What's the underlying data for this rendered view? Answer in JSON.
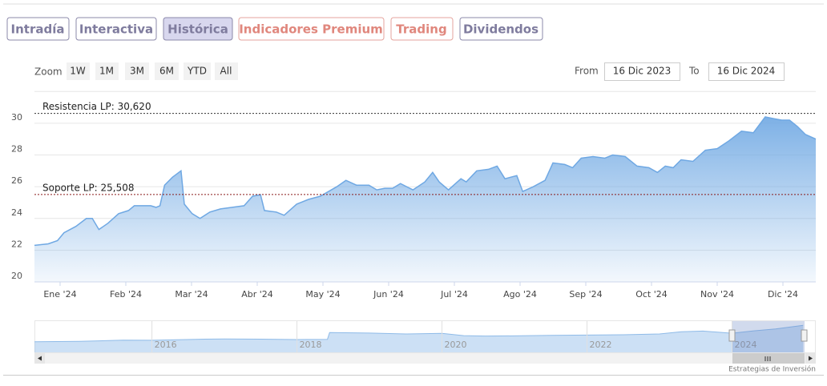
{
  "tabs": [
    "Intradía",
    "Interactiva",
    "Histórica",
    "Indicadores Premium",
    "Trading",
    "Dividendos"
  ],
  "zoom": {
    "label": "Zoom",
    "buttons": [
      "1W",
      "1M",
      "3M",
      "6M",
      "YTD",
      "All"
    ]
  },
  "range": {
    "from_label": "From",
    "from": "16 Dic 2023",
    "to_label": "To",
    "to": "16 Dic 2024"
  },
  "footer": "Estrategias de Inversión",
  "chart_data": [
    {
      "type": "area",
      "color": "#6fa8e3",
      "x": [
        -0.39,
        -0.18,
        -0.04,
        0.06,
        0.24,
        0.4,
        0.49,
        0.59,
        0.73,
        0.89,
        1.04,
        1.13,
        1.26,
        1.38,
        1.46,
        1.52,
        1.59,
        1.71,
        1.84,
        1.89,
        2.01,
        2.13,
        2.28,
        2.44,
        2.62,
        2.8,
        2.93,
        3.05,
        3.11,
        3.29,
        3.41,
        3.6,
        3.78,
        3.96,
        4.21,
        4.35,
        4.51,
        4.7,
        4.82,
        4.94,
        5.06,
        5.18,
        5.37,
        5.55,
        5.67,
        5.77,
        5.91,
        6.1,
        6.18,
        6.34,
        6.52,
        6.65,
        6.77,
        6.95,
        7.04,
        7.2,
        7.38,
        7.5,
        7.68,
        7.8,
        7.93,
        8.11,
        8.29,
        8.41,
        8.6,
        8.78,
        8.96,
        9.09,
        9.21,
        9.33,
        9.45,
        9.63,
        9.82,
        10.0,
        10.18,
        10.37,
        10.55,
        10.73,
        10.85,
        10.98,
        11.1,
        11.22,
        11.34,
        11.5
      ],
      "values": [
        22.3,
        22.4,
        22.6,
        23.1,
        23.5,
        24.0,
        24.0,
        23.3,
        23.7,
        24.3,
        24.5,
        24.8,
        24.8,
        24.8,
        24.7,
        24.8,
        26.1,
        26.6,
        27.0,
        24.9,
        24.3,
        24.0,
        24.4,
        24.6,
        24.7,
        24.8,
        25.4,
        25.5,
        24.5,
        24.4,
        24.2,
        24.9,
        25.2,
        25.4,
        26.0,
        26.4,
        26.1,
        26.1,
        25.8,
        25.9,
        25.9,
        26.2,
        25.8,
        26.3,
        26.9,
        26.3,
        25.8,
        26.5,
        26.3,
        27.0,
        27.1,
        27.3,
        26.5,
        26.7,
        25.7,
        26.0,
        26.4,
        27.5,
        27.4,
        27.2,
        27.8,
        27.9,
        27.8,
        28.0,
        27.9,
        27.3,
        27.2,
        26.9,
        27.3,
        27.2,
        27.7,
        27.6,
        28.3,
        28.4,
        28.9,
        29.5,
        29.4,
        30.4,
        30.3,
        30.2,
        30.2,
        29.8,
        29.3,
        29.0
      ],
      "xlim": [
        -0.39,
        11.5
      ],
      "xticks": [
        {
          "value": 0,
          "label": "Ene '24"
        },
        {
          "value": 1,
          "label": "Feb '24"
        },
        {
          "value": 2,
          "label": "Mar '24"
        },
        {
          "value": 3,
          "label": "Abr '24"
        },
        {
          "value": 4,
          "label": "May '24"
        },
        {
          "value": 5,
          "label": "Jun '24"
        },
        {
          "value": 6,
          "label": "Jul '24"
        },
        {
          "value": 7,
          "label": "Ago '24"
        },
        {
          "value": 8,
          "label": "Sep '24"
        },
        {
          "value": 9,
          "label": "Oct '24"
        },
        {
          "value": 10,
          "label": "Nov '24"
        },
        {
          "value": 11,
          "label": "Dic '24"
        }
      ],
      "ylim": [
        20,
        32
      ],
      "yticks": [
        20,
        22,
        24,
        26,
        28,
        30
      ],
      "grid": true,
      "plot_lines": [
        {
          "label": "Resistencia LP: 30,620",
          "value": 30.62,
          "color": "#333333"
        },
        {
          "label": "Soporte LP: 25,508",
          "value": 25.508,
          "color": "#8b1a1a"
        }
      ]
    },
    {
      "type": "area",
      "color": "#8fbbe8",
      "x": [
        2014.38,
        2015.0,
        2015.6,
        2016.0,
        2016.6,
        2017.0,
        2017.5,
        2018.0,
        2018.42,
        2018.45,
        2019.0,
        2019.5,
        2020.0,
        2020.3,
        2020.6,
        2021.0,
        2021.5,
        2022.0,
        2022.5,
        2023.0,
        2023.3,
        2023.6,
        2024.0,
        2024.3,
        2024.6,
        2024.98
      ],
      "values": [
        17.5,
        17.8,
        18.6,
        18.5,
        19.2,
        19.5,
        19.3,
        19.0,
        19.2,
        24.0,
        23.6,
        23.0,
        23.4,
        21.8,
        21.5,
        21.6,
        22.0,
        22.2,
        22.4,
        23.0,
        24.5,
        25.0,
        23.5,
        25.2,
        26.5,
        29.0
      ],
      "xlim": [
        2014.38,
        2025.0
      ],
      "xticks": [
        2016,
        2018,
        2020,
        2022,
        2024
      ],
      "ylim": [
        10,
        32
      ]
    }
  ]
}
